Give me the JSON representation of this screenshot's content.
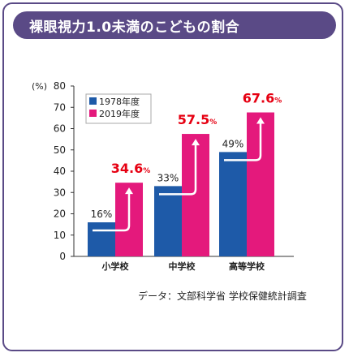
{
  "title": "裸眼視力1.0未満のこどもの割合",
  "source": "データ：文部科学省 学校保健統計調査",
  "colors": {
    "frame": "#5a4a86",
    "series1978": "#1e5aa8",
    "series2019": "#e4197c",
    "highlight": "#e60012"
  },
  "chart_data": {
    "type": "bar",
    "categories": [
      "小学校",
      "中学校",
      "高等学校"
    ],
    "series": [
      {
        "name": "1978年度",
        "values": [
          16,
          33,
          49
        ],
        "labels": [
          "16%",
          "33%",
          "49%"
        ]
      },
      {
        "name": "2019年度",
        "values": [
          34.6,
          57.5,
          67.6
        ],
        "labels": [
          "34.6",
          "57.5",
          "67.6"
        ]
      }
    ],
    "unit_suffix": "%",
    "ylabel": "(%)",
    "ylim": [
      0,
      80
    ],
    "yticks": [
      0,
      10,
      20,
      30,
      40,
      50,
      60,
      70,
      80
    ],
    "legend_position": "top-left",
    "grid": false
  }
}
